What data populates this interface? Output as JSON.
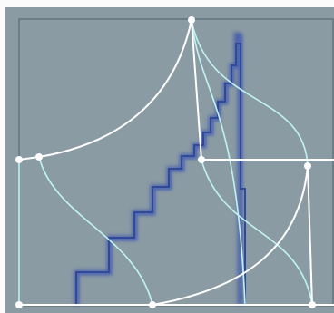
{
  "colors": {
    "page_background": "#fbfbfc",
    "panel_fill": "#8b9ba4",
    "panel_border": "#5a6a72",
    "white_curves": "#ffffff",
    "cyan_curves": "#bff3f1",
    "staircase_blue": "#2f4a9a",
    "staircase_glow": "#3c55a8",
    "node_fill": "#ffffff"
  },
  "diagram": {
    "description_visible_text": ""
  }
}
